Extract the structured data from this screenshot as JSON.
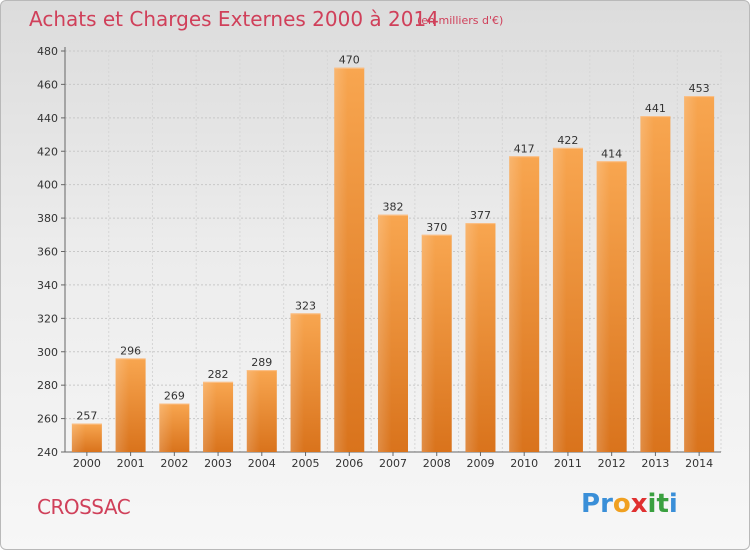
{
  "header": {
    "title": "Achats et Charges Externes 2000 à 2014",
    "subtitle": "(en milliers d'€)"
  },
  "footer": {
    "place": "CROSSAC",
    "logo_letters": [
      "P",
      "r",
      "o",
      "x",
      "i",
      "t",
      "i"
    ],
    "logo_colors": [
      "#3a8fd8",
      "#3a8fd8",
      "#f0a020",
      "#e03030",
      "#3aa040",
      "#3aa040",
      "#3a8fd8"
    ]
  },
  "chart_data": {
    "type": "bar",
    "categories": [
      "2000",
      "2001",
      "2002",
      "2003",
      "2004",
      "2005",
      "2006",
      "2007",
      "2008",
      "2009",
      "2010",
      "2011",
      "2012",
      "2013",
      "2014"
    ],
    "values": [
      257,
      296,
      269,
      282,
      289,
      323,
      470,
      382,
      370,
      377,
      417,
      422,
      414,
      441,
      453
    ],
    "title": "Achats et Charges Externes 2000 à 2014",
    "subtitle": "(en milliers d'€)",
    "xlabel": "",
    "ylabel": "",
    "ylim": [
      240,
      480
    ],
    "yticks": [
      240,
      260,
      280,
      300,
      320,
      340,
      360,
      380,
      400,
      420,
      440,
      460,
      480
    ],
    "grid": true,
    "bar_color": "#f08a2c"
  }
}
